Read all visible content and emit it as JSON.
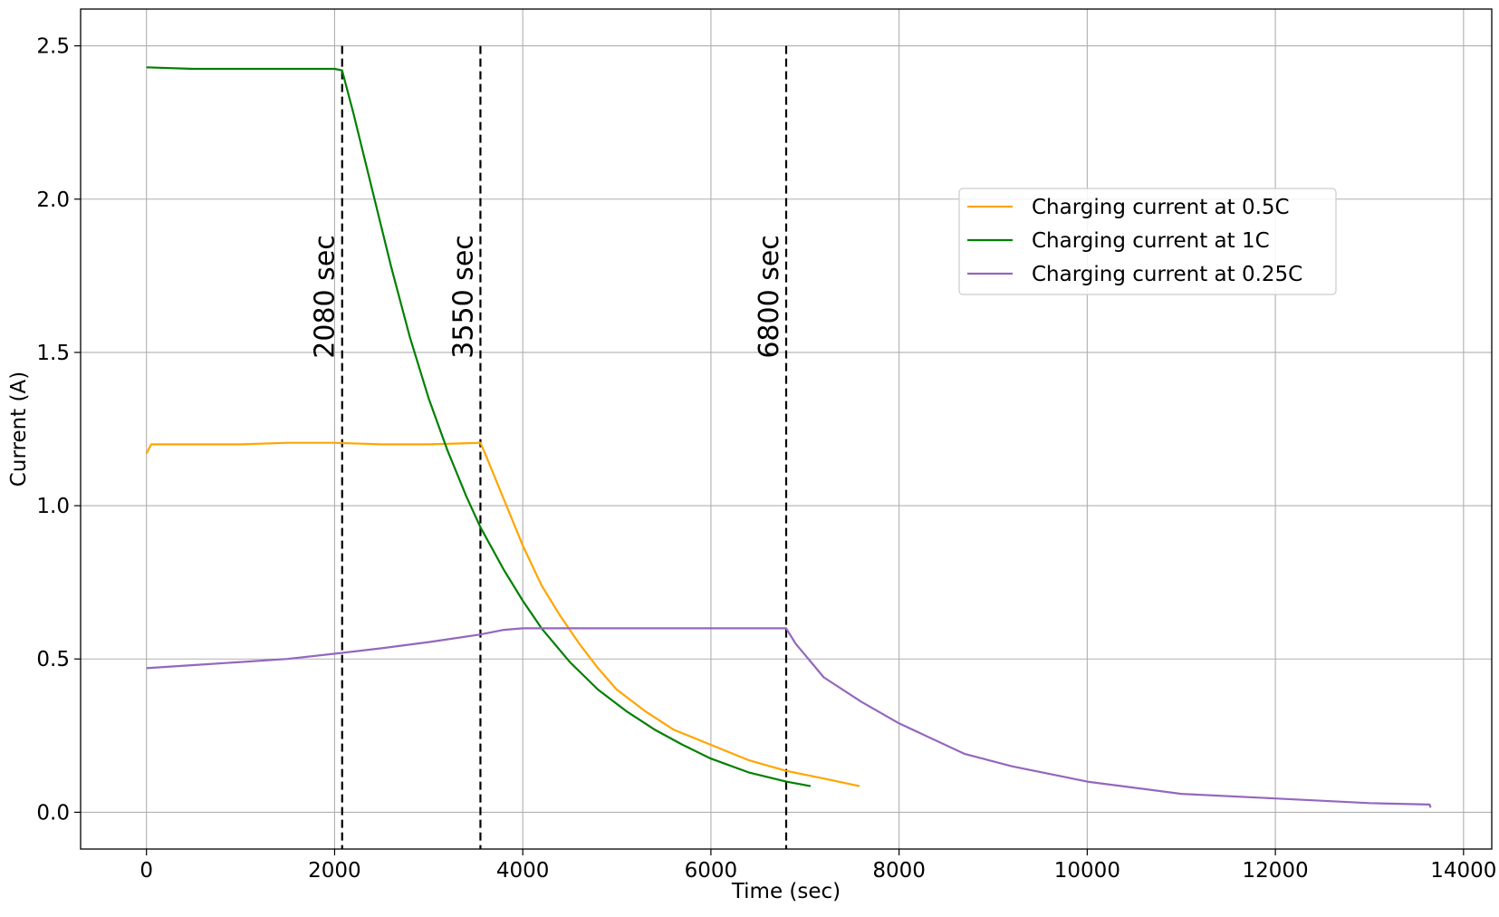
{
  "chart_data": {
    "type": "line",
    "title": "",
    "xlabel": "Time (sec)",
    "ylabel": "Current (A)",
    "xlim": [
      -700,
      14300
    ],
    "ylim": [
      -0.12,
      2.62
    ],
    "xticks": [
      0,
      2000,
      4000,
      6000,
      8000,
      10000,
      12000,
      14000
    ],
    "yticks": [
      0.0,
      0.5,
      1.0,
      1.5,
      2.0,
      2.5
    ],
    "xtick_labels": [
      "0",
      "2000",
      "4000",
      "6000",
      "8000",
      "10000",
      "12000",
      "14000"
    ],
    "ytick_labels": [
      "0.0",
      "0.5",
      "1.0",
      "1.5",
      "2.0",
      "2.5"
    ],
    "grid": true,
    "legend_position": "upper-right",
    "series": [
      {
        "name": "Charging current at 0.5C",
        "color": "#ffa500",
        "x": [
          0,
          50,
          500,
          1000,
          1500,
          2000,
          2500,
          3000,
          3550,
          3600,
          3800,
          4000,
          4200,
          4400,
          4600,
          4800,
          5000,
          5300,
          5600,
          6000,
          6400,
          6800,
          7200,
          7580
        ],
        "y": [
          1.17,
          1.2,
          1.2,
          1.2,
          1.205,
          1.205,
          1.2,
          1.2,
          1.205,
          1.17,
          1.02,
          0.87,
          0.74,
          0.64,
          0.55,
          0.47,
          0.4,
          0.33,
          0.27,
          0.22,
          0.17,
          0.135,
          0.11,
          0.085
        ]
      },
      {
        "name": "Charging current at 1C",
        "color": "#008000",
        "x": [
          0,
          500,
          1000,
          1500,
          2000,
          2080,
          2200,
          2400,
          2600,
          2800,
          3000,
          3200,
          3400,
          3550,
          3800,
          4000,
          4200,
          4500,
          4800,
          5100,
          5400,
          5700,
          6000,
          6400,
          6800,
          7060
        ],
        "y": [
          2.43,
          2.425,
          2.425,
          2.425,
          2.425,
          2.42,
          2.28,
          2.03,
          1.78,
          1.55,
          1.35,
          1.18,
          1.03,
          0.93,
          0.79,
          0.69,
          0.6,
          0.49,
          0.4,
          0.33,
          0.27,
          0.22,
          0.175,
          0.13,
          0.1,
          0.085
        ]
      },
      {
        "name": "Charging current at 0.25C",
        "color": "#9467bd",
        "x": [
          0,
          500,
          1000,
          1500,
          2080,
          2500,
          3000,
          3550,
          3800,
          4000,
          5000,
          6000,
          6800,
          6900,
          7200,
          7600,
          8000,
          8700,
          9200,
          10000,
          11000,
          12000,
          13000,
          13640,
          13650
        ],
        "y": [
          0.47,
          0.48,
          0.49,
          0.5,
          0.52,
          0.535,
          0.555,
          0.58,
          0.595,
          0.6,
          0.6,
          0.6,
          0.6,
          0.55,
          0.44,
          0.36,
          0.29,
          0.19,
          0.15,
          0.1,
          0.06,
          0.045,
          0.03,
          0.025,
          0.015
        ]
      }
    ],
    "vlines": [
      {
        "x": 2080,
        "label": "2080 sec",
        "color": "#000000",
        "style": "dashed"
      },
      {
        "x": 3550,
        "label": "3550 sec",
        "color": "#000000",
        "style": "dashed"
      },
      {
        "x": 6800,
        "label": "6800 sec",
        "color": "#000000",
        "style": "dashed"
      }
    ]
  }
}
